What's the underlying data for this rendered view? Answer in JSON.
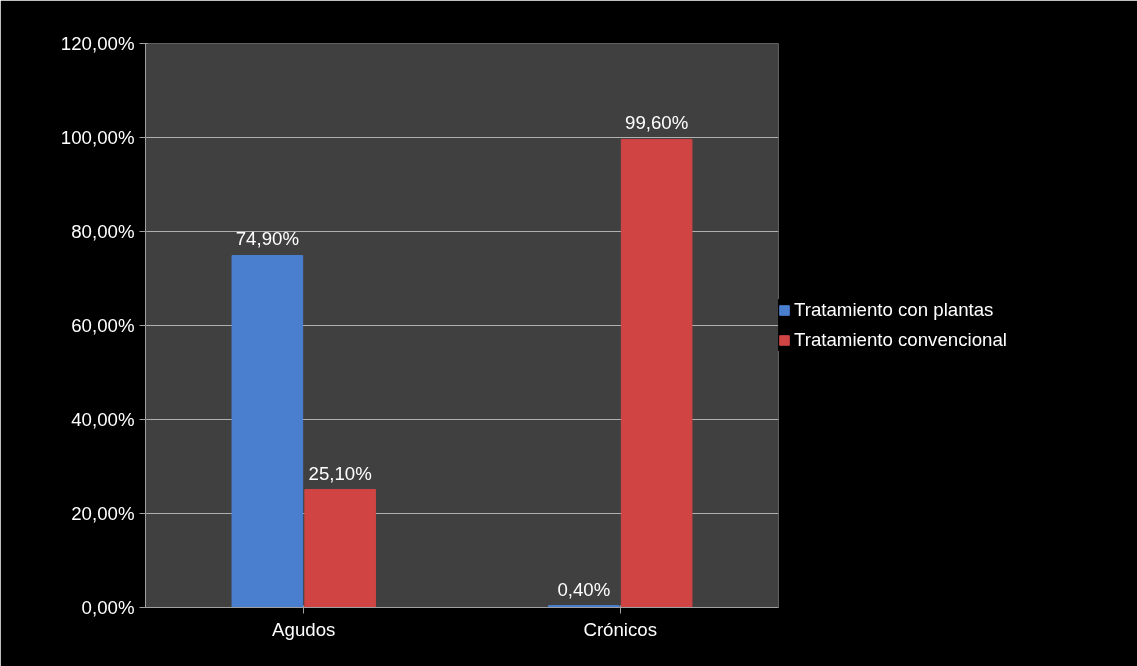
{
  "chart_data": {
    "type": "bar",
    "categories": [
      "Agudos",
      "Crónicos"
    ],
    "series": [
      {
        "name": "Tratamiento con plantas",
        "color": "#4a7fd0",
        "values": [
          74.9,
          0.4
        ],
        "value_labels": [
          "74,90%",
          "0,40%"
        ]
      },
      {
        "name": "Tratamiento convencional",
        "color": "#d04444",
        "values": [
          25.1,
          99.6
        ],
        "value_labels": [
          "25,10%",
          "99,60%"
        ]
      }
    ],
    "ylim": [
      0,
      120
    ],
    "yticks": [
      {
        "value": 0,
        "label": "0,00%"
      },
      {
        "value": 20,
        "label": "20,00%"
      },
      {
        "value": 40,
        "label": "40,00%"
      },
      {
        "value": 60,
        "label": "60,00%"
      },
      {
        "value": 80,
        "label": "80,00%"
      },
      {
        "value": 100,
        "label": "100,00%"
      },
      {
        "value": 120,
        "label": "120,00%"
      }
    ],
    "grid": "y",
    "legend": "right"
  }
}
